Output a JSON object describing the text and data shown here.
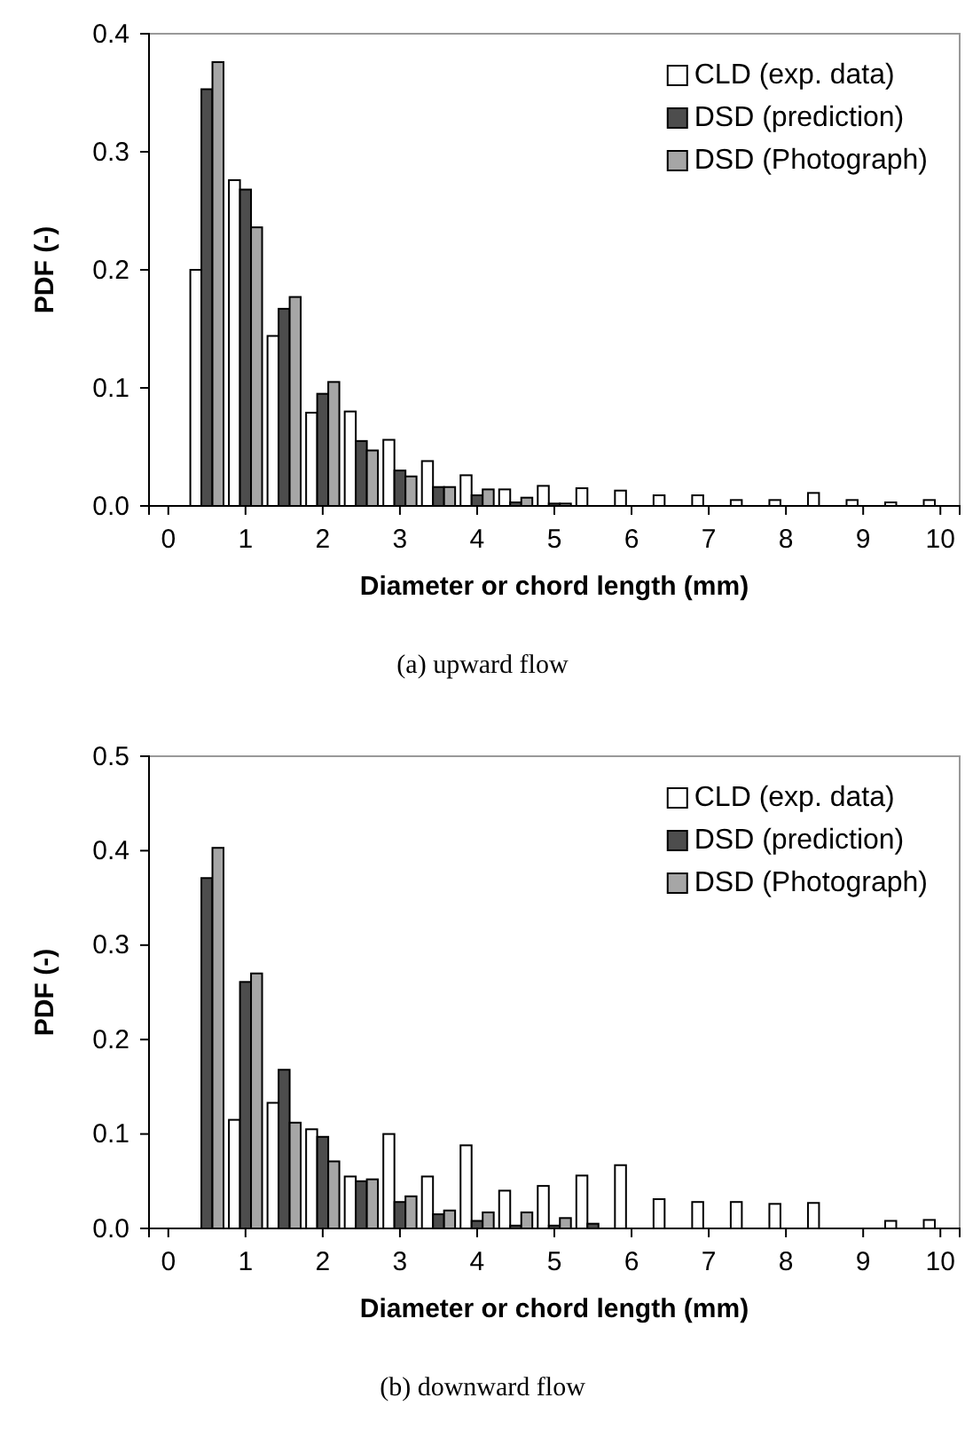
{
  "chart_data": [
    {
      "type": "bar",
      "x": [
        0.5,
        1,
        1.5,
        2,
        2.5,
        3,
        3.5,
        4,
        4.5,
        5,
        5.5,
        6,
        6.5,
        7,
        7.5,
        8,
        8.5,
        9,
        9.5,
        10
      ],
      "xlabel": "Diameter or chord length (mm)",
      "ylabel": "PDF (-)",
      "xlim": [
        -0.25,
        10.25
      ],
      "xticks": [
        0,
        1,
        2,
        3,
        4,
        5,
        6,
        7,
        8,
        9,
        10
      ],
      "ylim": [
        0,
        0.4
      ],
      "yticks": [
        {
          "value": 0,
          "label": "0.0"
        },
        {
          "value": 0.1,
          "label": "0.1"
        },
        {
          "value": 0.2,
          "label": "0.2"
        },
        {
          "value": 0.3,
          "label": "0.3"
        },
        {
          "value": 0.4,
          "label": "0.4"
        }
      ],
      "legend": "top right",
      "annotations": [
        "(a) upward flow"
      ],
      "series": [
        {
          "name": "CLD (exp. data)",
          "color": "#ffffff",
          "values": [
            0.2,
            0.276,
            0.144,
            0.079,
            0.08,
            0.056,
            0.038,
            0.026,
            0.014,
            0.017,
            0.015,
            0.013,
            0.009,
            0.009,
            0.005,
            0.005,
            0.011,
            0.005,
            0.003,
            0.005
          ]
        },
        {
          "name": "DSD (prediction)",
          "color": "#4d4d4d",
          "values": [
            0.353,
            0.268,
            0.167,
            0.095,
            0.055,
            0.03,
            0.016,
            0.009,
            0.003,
            0.002,
            0,
            0,
            0,
            0,
            0,
            0,
            0,
            0,
            0,
            0
          ]
        },
        {
          "name": "DSD (Photograph)",
          "color": "#a6a6a6",
          "values": [
            0.376,
            0.236,
            0.177,
            0.105,
            0.047,
            0.025,
            0.016,
            0.014,
            0.007,
            0.002,
            0,
            0,
            0,
            0,
            0,
            0,
            0,
            0,
            0,
            0
          ]
        }
      ]
    },
    {
      "type": "bar",
      "x": [
        0.5,
        1,
        1.5,
        2,
        2.5,
        3,
        3.5,
        4,
        4.5,
        5,
        5.5,
        6,
        6.5,
        7,
        7.5,
        8,
        8.5,
        9,
        9.5,
        10
      ],
      "xlabel": "Diameter or chord length (mm)",
      "ylabel": "PDF (-)",
      "xlim": [
        -0.25,
        10.25
      ],
      "xticks": [
        0,
        1,
        2,
        3,
        4,
        5,
        6,
        7,
        8,
        9,
        10
      ],
      "ylim": [
        0,
        0.5
      ],
      "yticks": [
        {
          "value": 0,
          "label": "0.0"
        },
        {
          "value": 0.1,
          "label": "0.1"
        },
        {
          "value": 0.2,
          "label": "0.2"
        },
        {
          "value": 0.3,
          "label": "0.3"
        },
        {
          "value": 0.4,
          "label": "0.4"
        },
        {
          "value": 0.5,
          "label": "0.5"
        }
      ],
      "legend": "top right",
      "annotations": [
        "(b) downward flow"
      ],
      "series": [
        {
          "name": "CLD (exp. data)",
          "color": "#ffffff",
          "values": [
            0,
            0.115,
            0.133,
            0.105,
            0.055,
            0.1,
            0.055,
            0.088,
            0.04,
            0.045,
            0.056,
            0.067,
            0.031,
            0.028,
            0.028,
            0.026,
            0.027,
            0,
            0.008,
            0.009
          ]
        },
        {
          "name": "DSD (prediction)",
          "color": "#4d4d4d",
          "values": [
            0.371,
            0.261,
            0.168,
            0.097,
            0.05,
            0.028,
            0.015,
            0.008,
            0.003,
            0.003,
            0.005,
            0,
            0,
            0,
            0,
            0,
            0,
            0,
            0,
            0
          ]
        },
        {
          "name": "DSD (Photograph)",
          "color": "#a6a6a6",
          "values": [
            0.403,
            0.27,
            0.112,
            0.071,
            0.052,
            0.034,
            0.019,
            0.017,
            0.017,
            0.011,
            0,
            0,
            0,
            0,
            0,
            0,
            0,
            0,
            0,
            0
          ]
        }
      ]
    }
  ]
}
